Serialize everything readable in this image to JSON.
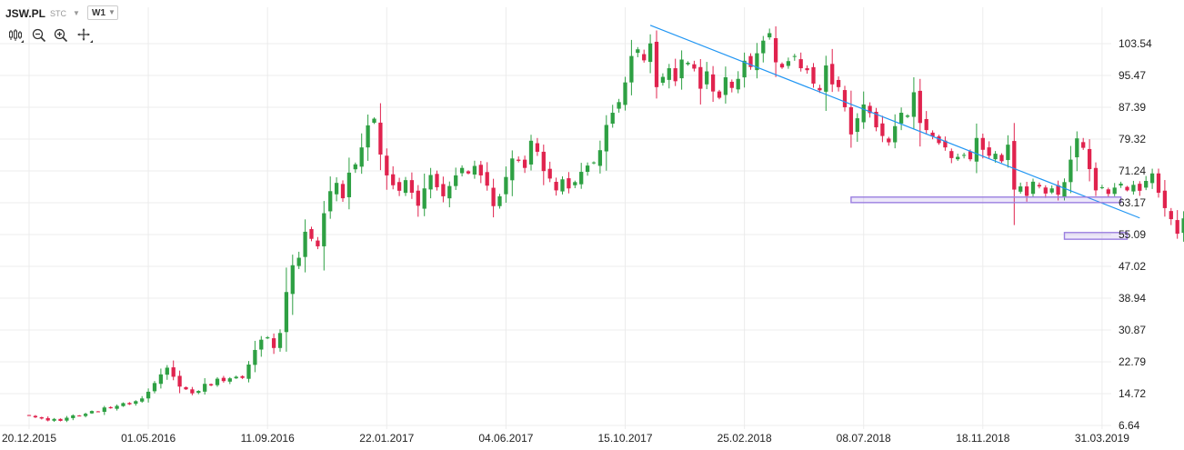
{
  "toolbar": {
    "symbol": "JSW.PL",
    "source": "STC",
    "timeframe": "W1",
    "tools": [
      "candles-icon",
      "zoom-out-icon",
      "zoom-in-icon",
      "crosshair-icon"
    ]
  },
  "colors": {
    "up": "#2ea043",
    "down": "#e0234e",
    "grid": "#ececec",
    "trendline": "#2196f3",
    "zone": "#9b7fe0"
  },
  "chart_data": {
    "type": "candlestick",
    "y_axis": {
      "ticks": [
        "103.54",
        "95.47",
        "87.39",
        "79.32",
        "71.24",
        "63.17",
        "55.09",
        "47.02",
        "38.94",
        "30.87",
        "22.79",
        "14.72",
        "6.64"
      ],
      "ylim": [
        5.5,
        108
      ]
    },
    "x_axis": {
      "ticks": [
        "20.12.2015",
        "01.05.2016",
        "11.09.2016",
        "22.01.2017",
        "04.06.2017",
        "15.10.2017",
        "25.02.2018",
        "08.07.2018",
        "18.11.2018",
        "31.03.2019"
      ]
    },
    "closes": [
      9.1,
      8.7,
      8.4,
      7.9,
      8.3,
      7.8,
      8.6,
      9.2,
      9.0,
      9.6,
      10.3,
      10.1,
      11.2,
      11.0,
      11.6,
      12.3,
      12.0,
      12.8,
      13.5,
      15.2,
      17.4,
      19.6,
      21.3,
      19.0,
      16.5,
      15.8,
      14.8,
      15.4,
      17.2,
      16.8,
      18.5,
      17.9,
      18.6,
      19.0,
      18.7,
      22.1,
      25.8,
      28.4,
      29.0,
      26.3,
      30.1,
      40.5,
      47.3,
      49.2,
      55.8,
      54.0,
      52.1,
      60.5,
      66.1,
      68.2,
      64.3,
      70.8,
      72.9,
      77.2,
      82.8,
      84.5,
      75.4,
      70.1,
      67.6,
      66.2,
      68.9,
      65.7,
      62.4,
      66.8,
      70.2,
      67.1,
      64.8,
      67.4,
      70.1,
      72.0,
      70.6,
      72.5,
      70.1,
      67.5,
      62.3,
      64.8,
      69.7,
      74.4,
      73.8,
      72.0,
      78.9,
      76.1,
      71.2,
      69.3,
      66.3,
      69.1,
      66.8,
      68.4,
      71.0,
      72.6,
      73.4,
      76.5,
      82.9,
      86.0,
      88.7,
      93.7,
      100.4,
      102.1,
      99.3,
      103.6,
      92.5,
      95.1,
      97.3,
      94.0,
      99.5,
      98.7,
      97.2,
      92.1,
      96.5,
      91.4,
      89.8,
      95.0,
      92.3,
      94.6,
      99.2,
      97.6,
      101.1,
      104.3,
      106.2,
      98.8,
      97.5,
      99.1,
      100.4,
      97.3,
      96.8,
      93.4,
      91.7,
      98.0,
      93.2,
      92.5,
      87.4,
      80.5,
      84.6,
      88.1,
      85.9,
      82.3,
      80.1,
      78.5,
      82.6,
      86.0,
      85.3,
      91.2,
      83.4,
      81.6,
      80.0,
      78.3,
      77.2,
      74.5,
      74.8,
      75.3,
      74.2,
      79.6,
      76.6,
      75.1,
      75.6,
      73.7,
      77.9,
      66.5,
      67.3,
      64.9,
      68.5,
      67.3,
      65.5,
      66.8,
      65.2,
      68.4,
      74.1,
      79.5,
      77.1,
      71.7,
      66.3,
      67.1,
      65.4,
      67.0,
      68.0,
      66.3,
      67.7,
      66.2,
      68.7,
      70.6,
      65.7,
      61.8,
      59.0,
      55.3,
      59.2,
      62.6,
      63.4,
      61.5,
      60.5,
      59.7,
      60.2,
      58.8,
      55.7,
      52.8
    ],
    "overlays": [
      {
        "type": "trendline",
        "from": [
          "15.10.2017+4w",
          108.2
        ],
        "to": [
          "31.03.2019+6w",
          59.3
        ]
      },
      {
        "type": "zone",
        "from": [
          "08.07.2018-2w",
          64.6
        ],
        "to": [
          "31.03.2019+3w",
          63.2
        ]
      },
      {
        "type": "zone",
        "from": [
          "31.03.2019-6w",
          55.6
        ],
        "to": [
          "31.03.2019+4w",
          53.9
        ]
      }
    ]
  }
}
